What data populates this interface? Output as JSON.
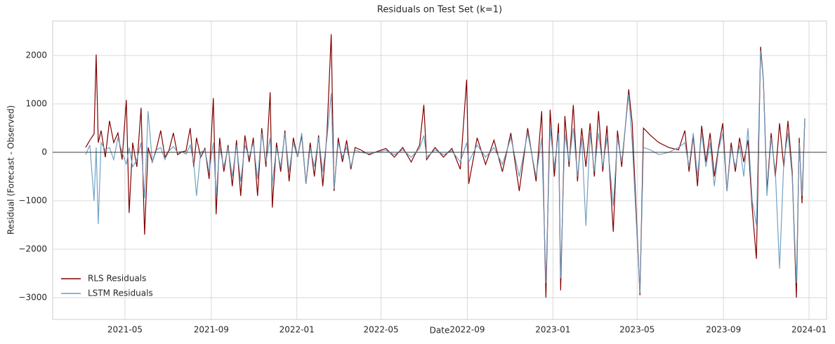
{
  "chart_data": {
    "type": "line",
    "title": "Residuals on Test Set (k=1)",
    "x_label": "Date",
    "y_label": "Residual (Forecast - Observed)",
    "x": [
      "2021-03-06",
      "2021-03-12",
      "2021-03-18",
      "2021-03-21",
      "2021-03-24",
      "2021-03-28",
      "2021-04-03",
      "2021-04-09",
      "2021-04-15",
      "2021-04-21",
      "2021-04-27",
      "2021-05-03",
      "2021-05-07",
      "2021-05-12",
      "2021-05-18",
      "2021-05-24",
      "2021-05-29",
      "2021-06-03",
      "2021-06-09",
      "2021-06-15",
      "2021-06-21",
      "2021-06-27",
      "2021-07-03",
      "2021-07-09",
      "2021-07-15",
      "2021-07-21",
      "2021-07-27",
      "2021-08-02",
      "2021-08-07",
      "2021-08-11",
      "2021-08-17",
      "2021-08-23",
      "2021-08-29",
      "2021-09-04",
      "2021-09-08",
      "2021-09-13",
      "2021-09-19",
      "2021-09-25",
      "2021-10-01",
      "2021-10-07",
      "2021-10-13",
      "2021-10-19",
      "2021-10-25",
      "2021-10-31",
      "2021-11-06",
      "2021-11-12",
      "2021-11-18",
      "2021-11-24",
      "2021-11-27",
      "2021-12-03",
      "2021-12-09",
      "2021-12-15",
      "2021-12-21",
      "2021-12-27",
      "2022-01-02",
      "2022-01-08",
      "2022-01-14",
      "2022-01-20",
      "2022-01-26",
      "2022-02-01",
      "2022-02-07",
      "2022-02-13",
      "2022-02-19",
      "2022-02-23",
      "2022-03-01",
      "2022-03-07",
      "2022-03-13",
      "2022-03-19",
      "2022-03-25",
      "2022-04-02",
      "2022-04-14",
      "2022-04-26",
      "2022-05-08",
      "2022-05-20",
      "2022-06-01",
      "2022-06-13",
      "2022-06-25",
      "2022-07-01",
      "2022-07-05",
      "2022-07-17",
      "2022-07-29",
      "2022-08-10",
      "2022-08-22",
      "2022-08-31",
      "2022-09-03",
      "2022-09-15",
      "2022-09-27",
      "2022-10-09",
      "2022-10-21",
      "2022-11-02",
      "2022-11-14",
      "2022-11-26",
      "2022-12-08",
      "2022-12-16",
      "2022-12-22",
      "2022-12-28",
      "2023-01-03",
      "2023-01-09",
      "2023-01-12",
      "2023-01-18",
      "2023-01-24",
      "2023-01-30",
      "2023-02-05",
      "2023-02-11",
      "2023-02-17",
      "2023-02-23",
      "2023-03-01",
      "2023-03-07",
      "2023-03-13",
      "2023-03-19",
      "2023-03-28",
      "2023-04-03",
      "2023-04-09",
      "2023-04-19",
      "2023-04-24",
      "2023-05-05",
      "2023-05-10",
      "2023-05-20",
      "2023-06-01",
      "2023-06-15",
      "2023-06-29",
      "2023-07-08",
      "2023-07-14",
      "2023-07-20",
      "2023-07-26",
      "2023-08-01",
      "2023-08-07",
      "2023-08-13",
      "2023-08-19",
      "2023-08-25",
      "2023-08-31",
      "2023-09-06",
      "2023-09-12",
      "2023-09-18",
      "2023-09-24",
      "2023-09-30",
      "2023-10-06",
      "2023-10-12",
      "2023-10-18",
      "2023-10-24",
      "2023-10-28",
      "2023-11-02",
      "2023-11-08",
      "2023-11-14",
      "2023-11-20",
      "2023-11-26",
      "2023-12-02",
      "2023-12-08",
      "2023-12-14",
      "2023-12-18",
      "2023-12-22",
      "2023-12-26"
    ],
    "series": [
      {
        "name": "RLS Residuals",
        "color": "#800000",
        "values": [
          100,
          250,
          380,
          2020,
          200,
          450,
          -100,
          650,
          200,
          400,
          -150,
          1080,
          -1250,
          200,
          -300,
          920,
          -1700,
          100,
          -200,
          80,
          450,
          -100,
          50,
          400,
          -50,
          10,
          30,
          500,
          -300,
          300,
          -100,
          80,
          -550,
          1120,
          -1280,
          300,
          -400,
          150,
          -700,
          250,
          -900,
          350,
          -200,
          300,
          -900,
          500,
          -300,
          1240,
          -1140,
          200,
          -400,
          450,
          -600,
          300,
          -100,
          350,
          -650,
          200,
          -500,
          350,
          -700,
          400,
          2440,
          -800,
          300,
          -200,
          250,
          -350,
          100,
          50,
          -50,
          20,
          80,
          -100,
          100,
          -200,
          150,
          980,
          -150,
          100,
          -100,
          80,
          -350,
          1500,
          -650,
          300,
          -250,
          250,
          -400,
          400,
          -800,
          500,
          -600,
          850,
          -3000,
          880,
          -500,
          600,
          -2850,
          750,
          -300,
          980,
          -600,
          500,
          -300,
          600,
          -500,
          850,
          -400,
          550,
          -1640,
          450,
          -300,
          1300,
          600,
          -2950,
          500,
          350,
          200,
          100,
          50,
          450,
          -400,
          350,
          -700,
          550,
          -200,
          400,
          -500,
          100,
          600,
          -800,
          200,
          -400,
          300,
          -200,
          250,
          -1150,
          -2200,
          2180,
          1480,
          -800,
          400,
          -500,
          600,
          -300,
          650,
          -400,
          -3000,
          300,
          -1050,
          700
        ]
      },
      {
        "name": "LSTM Residuals",
        "color": "#6a9ec0",
        "values": [
          -50,
          150,
          -1000,
          100,
          -1480,
          200,
          50,
          100,
          -150,
          300,
          0,
          -250,
          100,
          -300,
          -150,
          200,
          -950,
          850,
          -200,
          50,
          100,
          -150,
          30,
          120,
          0,
          20,
          -40,
          150,
          -200,
          -900,
          0,
          50,
          -400,
          200,
          -900,
          100,
          -300,
          100,
          -500,
          150,
          -600,
          150,
          -100,
          200,
          -550,
          400,
          -200,
          300,
          -650,
          100,
          -300,
          400,
          -400,
          200,
          -100,
          400,
          -650,
          100,
          -300,
          300,
          -400,
          300,
          1220,
          -750,
          200,
          -100,
          100,
          -300,
          50,
          0,
          -30,
          10,
          40,
          -50,
          50,
          -100,
          80,
          350,
          -100,
          50,
          -50,
          30,
          -200,
          200,
          -200,
          150,
          -100,
          100,
          -250,
          300,
          -500,
          400,
          -500,
          300,
          -2700,
          500,
          -300,
          400,
          -2600,
          400,
          -200,
          500,
          -500,
          300,
          -1520,
          400,
          -400,
          400,
          -300,
          300,
          -1100,
          300,
          -200,
          1200,
          200,
          -2900,
          100,
          50,
          -50,
          0,
          100,
          200,
          -300,
          400,
          -500,
          400,
          -300,
          200,
          -700,
          50,
          400,
          -800,
          100,
          -300,
          150,
          -500,
          500,
          -1000,
          -1500,
          2100,
          1460,
          -900,
          300,
          -400,
          -2400,
          -200,
          400,
          -500,
          -2700,
          200,
          -900,
          700
        ]
      }
    ],
    "xlim": [
      "2021-01-18",
      "2024-01-26"
    ],
    "xticks": [
      {
        "value": "2021-05-01",
        "label": "2021-05"
      },
      {
        "value": "2021-09-01",
        "label": "2021-09"
      },
      {
        "value": "2022-01-01",
        "label": "2022-01"
      },
      {
        "value": "2022-05-01",
        "label": "2022-05"
      },
      {
        "value": "2022-09-01",
        "label": "2022-09"
      },
      {
        "value": "2023-01-01",
        "label": "2023-01"
      },
      {
        "value": "2023-05-01",
        "label": "2023-05"
      },
      {
        "value": "2023-09-01",
        "label": "2023-09"
      },
      {
        "value": "2024-01-01",
        "label": "2024-01"
      }
    ],
    "ylim": [
      -3450,
      2710
    ],
    "yticks": [
      {
        "value": -3000,
        "label": "−3000"
      },
      {
        "value": -2000,
        "label": "−2000"
      },
      {
        "value": -1000,
        "label": "−1000"
      },
      0,
      1000,
      2000
    ],
    "zero_line": 0,
    "grid": true,
    "legend": "lower left"
  }
}
